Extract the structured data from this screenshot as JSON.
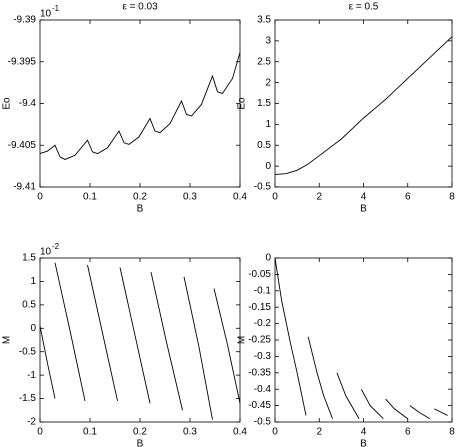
{
  "chart_data": [
    {
      "type": "line",
      "title": "ε = 0.03",
      "xlabel": "B",
      "ylabel": "Eo",
      "y_multiplier": {
        "base": "10",
        "exponent": "-1"
      },
      "x": [
        0,
        0.015,
        0.03,
        0.04,
        0.05,
        0.07,
        0.095,
        0.105,
        0.115,
        0.135,
        0.158,
        0.168,
        0.178,
        0.198,
        0.22,
        0.23,
        0.24,
        0.26,
        0.283,
        0.293,
        0.303,
        0.323,
        0.345,
        0.355,
        0.365,
        0.385,
        0.4
      ],
      "values": [
        -9.406,
        -9.4057,
        -9.405,
        -9.4064,
        -9.4067,
        -9.4062,
        -9.4044,
        -9.4058,
        -9.406,
        -9.4053,
        -9.4033,
        -9.4047,
        -9.4049,
        -9.404,
        -9.4018,
        -9.4033,
        -9.4035,
        -9.4024,
        -9.3997,
        -9.4013,
        -9.4015,
        -9.4001,
        -9.3967,
        -9.3986,
        -9.3988,
        -9.397,
        -9.3939
      ],
      "color": "#000000",
      "xlim": [
        0,
        0.4
      ],
      "xticks": [
        0,
        0.1,
        0.2,
        0.3,
        0.4
      ],
      "ylim": [
        -9.41,
        -9.39
      ],
      "yticks": [
        -9.41,
        -9.405,
        -9.4,
        -9.395,
        -9.39
      ]
    },
    {
      "type": "line",
      "title": "ε = 0.5",
      "xlabel": "B",
      "ylabel": "Eo",
      "x": [
        0,
        0.5,
        1,
        1.5,
        2,
        3,
        4,
        5,
        6,
        7,
        8
      ],
      "values": [
        -0.2,
        -0.18,
        -0.1,
        0.05,
        0.25,
        0.65,
        1.15,
        1.6,
        2.1,
        2.6,
        3.1
      ],
      "color": "#000000",
      "xlim": [
        0,
        8
      ],
      "xticks": [
        0,
        2,
        4,
        6,
        8
      ],
      "ylim": [
        -0.5,
        3.5
      ],
      "yticks": [
        -0.5,
        0,
        0.5,
        1,
        1.5,
        2,
        2.5,
        3,
        3.5
      ]
    },
    {
      "type": "line",
      "xlabel": "B",
      "ylabel": "M",
      "y_multiplier": {
        "base": "10",
        "exponent": "-2"
      },
      "x": [
        0,
        0.015,
        0.03,
        0.03,
        0.03,
        0.06,
        0.09,
        0.09,
        0.095,
        0.125,
        0.155,
        0.155,
        0.16,
        0.19,
        0.22,
        0.22,
        0.222,
        0.252,
        0.285,
        0.285,
        0.288,
        0.318,
        0.345,
        0.345,
        0.348,
        0.375,
        0.4
      ],
      "values": [
        0.05,
        -0.75,
        -1.5,
        null,
        1.4,
        -0.05,
        -1.55,
        null,
        1.35,
        -0.1,
        -1.55,
        null,
        1.3,
        -0.15,
        -1.6,
        null,
        1.2,
        -0.25,
        -1.75,
        null,
        1.1,
        -0.4,
        -1.95,
        null,
        0.85,
        -0.35,
        -1.6
      ],
      "color": "#000000",
      "xlim": [
        0,
        0.4
      ],
      "xticks": [
        0,
        0.1,
        0.2,
        0.3,
        0.4
      ],
      "ylim": [
        -2,
        1.5
      ],
      "yticks": [
        -2,
        -1.5,
        -1,
        -0.5,
        0,
        0.5,
        1,
        1.5
      ]
    },
    {
      "type": "line",
      "xlabel": "B",
      "ylabel": "M",
      "x": [
        0,
        0.3,
        0.7,
        1,
        1.4,
        1.4,
        1.5,
        1.9,
        2.2,
        2.6,
        2.6,
        2.8,
        3.2,
        3.8,
        3.8,
        3.9,
        4.3,
        4.9,
        4.9,
        5,
        5.4,
        6,
        6,
        6.1,
        6.5,
        7,
        7,
        7.2,
        7.8
      ],
      "values": [
        0,
        -0.13,
        -0.26,
        -0.35,
        -0.48,
        null,
        -0.24,
        -0.35,
        -0.42,
        -0.49,
        null,
        -0.35,
        -0.42,
        -0.49,
        null,
        -0.4,
        -0.45,
        -0.49,
        null,
        -0.43,
        -0.46,
        -0.49,
        null,
        -0.45,
        -0.47,
        -0.49,
        null,
        -0.46,
        -0.48
      ],
      "color": "#000000",
      "xlim": [
        0,
        8
      ],
      "xticks": [
        0,
        2,
        4,
        6,
        8
      ],
      "ylim": [
        -0.5,
        0
      ],
      "yticks": [
        -0.5,
        -0.45,
        -0.4,
        -0.35,
        -0.3,
        -0.25,
        -0.2,
        -0.15,
        -0.1,
        -0.05,
        0
      ]
    }
  ]
}
